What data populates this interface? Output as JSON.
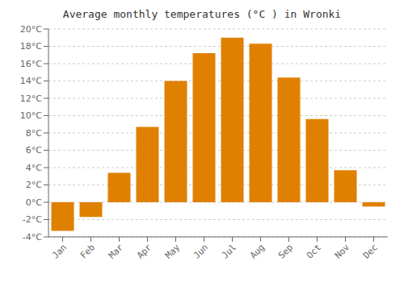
{
  "chart_data": {
    "type": "bar",
    "title": "Average monthly temperatures (°C ) in Wronki",
    "categories": [
      "Jan",
      "Feb",
      "Mar",
      "Apr",
      "May",
      "Jun",
      "Jul",
      "Aug",
      "Sep",
      "Oct",
      "Nov",
      "Dec"
    ],
    "values": [
      -3.3,
      -1.7,
      3.4,
      8.7,
      14.0,
      17.2,
      19.0,
      18.3,
      14.4,
      9.6,
      3.7,
      -0.5
    ],
    "color": "#E08000",
    "ylim": [
      -4,
      20
    ],
    "yticks": [
      {
        "value": -4,
        "label": "-4°C"
      },
      {
        "value": -2,
        "label": "-2°C"
      },
      {
        "value": 0,
        "label": "0°C"
      },
      {
        "value": 2,
        "label": "2°C"
      },
      {
        "value": 4,
        "label": "4°C"
      },
      {
        "value": 6,
        "label": "6°C"
      },
      {
        "value": 8,
        "label": "8°C"
      },
      {
        "value": 10,
        "label": "10°C"
      },
      {
        "value": 12,
        "label": "12°C"
      },
      {
        "value": 14,
        "label": "14°C"
      },
      {
        "value": 16,
        "label": "16°C"
      },
      {
        "value": 18,
        "label": "18°C"
      },
      {
        "value": 20,
        "label": "20°C"
      }
    ],
    "grid": true
  }
}
